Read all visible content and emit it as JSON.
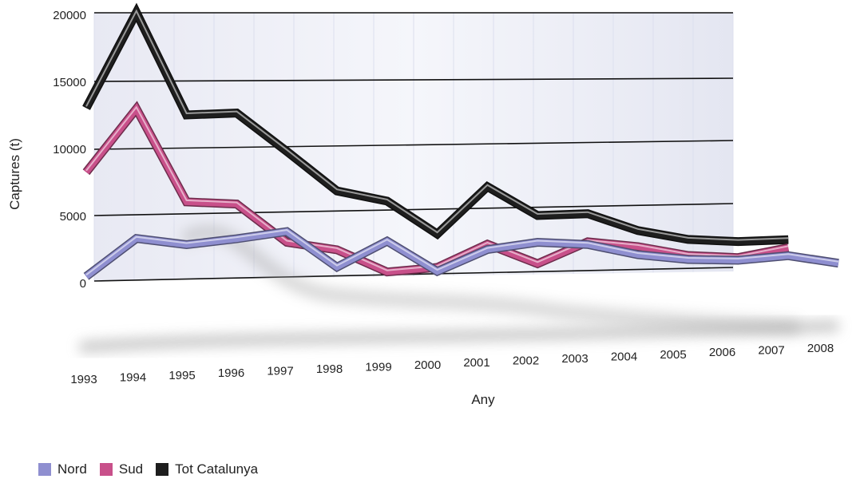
{
  "chart_data": {
    "type": "line",
    "title": "",
    "xlabel": "Any",
    "ylabel": "Captures (t)",
    "ylim": [
      0,
      20000
    ],
    "yticks": [
      "20000",
      "15000",
      "10000",
      "5000",
      "0"
    ],
    "categories": [
      "1993",
      "1994",
      "1995",
      "1996",
      "1997",
      "1998",
      "1999",
      "2000",
      "2001",
      "2002",
      "2003",
      "2004",
      "2005",
      "2006",
      "2007",
      "2008"
    ],
    "grid": true,
    "legend_position": "bottom-left",
    "series": [
      {
        "name": "Nord",
        "color": "#8f8fd0",
        "values": [
          400,
          3100,
          2500,
          2800,
          3200,
          400,
          2200,
          -200,
          1300,
          1700,
          1400,
          500,
          0,
          -200,
          0,
          -700
        ]
      },
      {
        "name": "Sud",
        "color": "#c8508a",
        "values": [
          8200,
          12800,
          5700,
          5400,
          2400,
          1700,
          -100,
          100,
          1700,
          100,
          1600,
          1100,
          300,
          0,
          600,
          null
        ]
      },
      {
        "name": "Tot Catalunya",
        "color": "#1e1e1e",
        "values": [
          13000,
          20000,
          12200,
          12200,
          9200,
          6100,
          5200,
          2600,
          6000,
          3700,
          3700,
          2300,
          1500,
          1200,
          1200,
          null
        ]
      }
    ]
  },
  "legend": [
    {
      "label": "Nord",
      "color": "#8f8fd0"
    },
    {
      "label": "Sud",
      "color": "#c8508a"
    },
    {
      "label": "Tot Catalunya",
      "color": "#1e1e1e"
    }
  ]
}
